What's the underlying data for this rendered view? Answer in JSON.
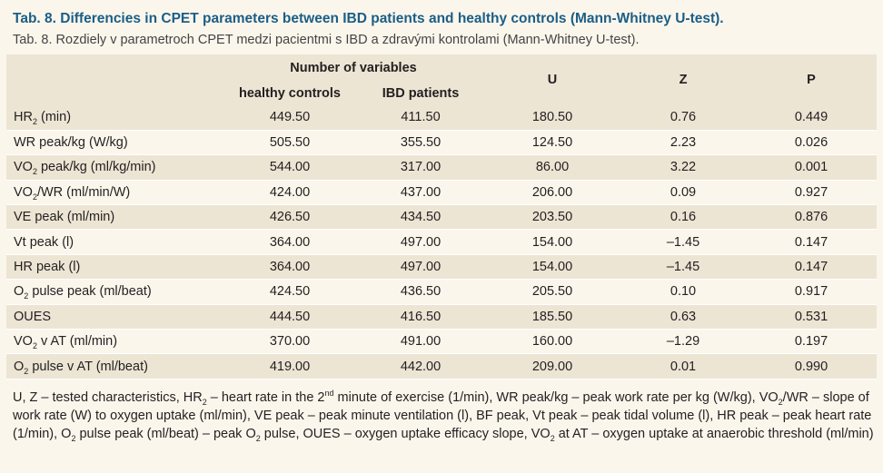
{
  "title_en": "Tab. 8. Differencies in CPET parameters between IBD patients and healthy controls (Mann-Whitney U-test).",
  "title_sk": "Tab. 8. Rozdiely v parametroch CPET medzi pacientmi s IBD a zdravými kontrolami (Mann-Whitney U-test).",
  "header": {
    "group": "Number of variables",
    "col_controls": "healthy controls",
    "col_ibd": "IBD patients",
    "col_u": "U",
    "col_z": "Z",
    "col_p": "P"
  },
  "rows": [
    {
      "pre": "HR",
      "sub": "2",
      "post": " (min)",
      "controls": "449.50",
      "ibd": "411.50",
      "u": "180.50",
      "z": "0.76",
      "p": "0.449"
    },
    {
      "pre": "WR peak/kg (W/kg)",
      "sub": "",
      "post": "",
      "controls": "505.50",
      "ibd": "355.50",
      "u": "124.50",
      "z": "2.23",
      "p": "0.026"
    },
    {
      "pre": "VO",
      "sub": "2",
      "post": " peak/kg (ml/kg/min)",
      "controls": "544.00",
      "ibd": "317.00",
      "u": "86.00",
      "z": "3.22",
      "p": "0.001"
    },
    {
      "pre": "VO",
      "sub": "2",
      "post": "/WR (ml/min/W)",
      "controls": "424.00",
      "ibd": "437.00",
      "u": "206.00",
      "z": "0.09",
      "p": "0.927"
    },
    {
      "pre": "VE peak (ml/min)",
      "sub": "",
      "post": "",
      "controls": "426.50",
      "ibd": "434.50",
      "u": "203.50",
      "z": "0.16",
      "p": "0.876"
    },
    {
      "pre": "Vt peak (l)",
      "sub": "",
      "post": "",
      "controls": "364.00",
      "ibd": "497.00",
      "u": "154.00",
      "z": "–1.45",
      "p": "0.147"
    },
    {
      "pre": "HR peak (l)",
      "sub": "",
      "post": "",
      "controls": "364.00",
      "ibd": "497.00",
      "u": "154.00",
      "z": "–1.45",
      "p": "0.147"
    },
    {
      "pre": "O",
      "sub": "2",
      "post": " pulse peak (ml/beat)",
      "controls": "424.50",
      "ibd": "436.50",
      "u": "205.50",
      "z": "0.10",
      "p": "0.917"
    },
    {
      "pre": "OUES",
      "sub": "",
      "post": "",
      "controls": "444.50",
      "ibd": "416.50",
      "u": "185.50",
      "z": "0.63",
      "p": "0.531"
    },
    {
      "pre": "VO",
      "sub": "2",
      "post": " v AT (ml/min)",
      "controls": "370.00",
      "ibd": "491.00",
      "u": "160.00",
      "z": "–1.29",
      "p": "0.197"
    },
    {
      "pre": "O",
      "sub": "2",
      "post": " pulse v AT (ml/beat)",
      "controls": "419.00",
      "ibd": "442.00",
      "u": "209.00",
      "z": "0.01",
      "p": "0.990"
    }
  ],
  "note": [
    {
      "t": "U, Z – tested characteristics, HR"
    },
    {
      "sub": "2"
    },
    {
      "t": " – heart rate in the 2"
    },
    {
      "sup": "nd"
    },
    {
      "t": " minute of exercise (1/min), WR peak/kg – peak work rate per kg (W/kg), VO"
    },
    {
      "sub": "2"
    },
    {
      "t": "/WR – slope of work rate (W) to oxygen uptake (ml/min), VE peak – peak minute ventilation (l), BF peak, Vt peak – peak tidal volume (l), HR peak – peak heart rate (1/min), O"
    },
    {
      "sub": "2"
    },
    {
      "t": " pulse peak (ml/beat) – peak O"
    },
    {
      "sub": "2"
    },
    {
      "t": " pulse, OUES – oxygen uptake efficacy slope, VO"
    },
    {
      "sub": "2"
    },
    {
      "t": " at AT – oxygen uptake at anaerobic threshold (ml/min)"
    }
  ]
}
